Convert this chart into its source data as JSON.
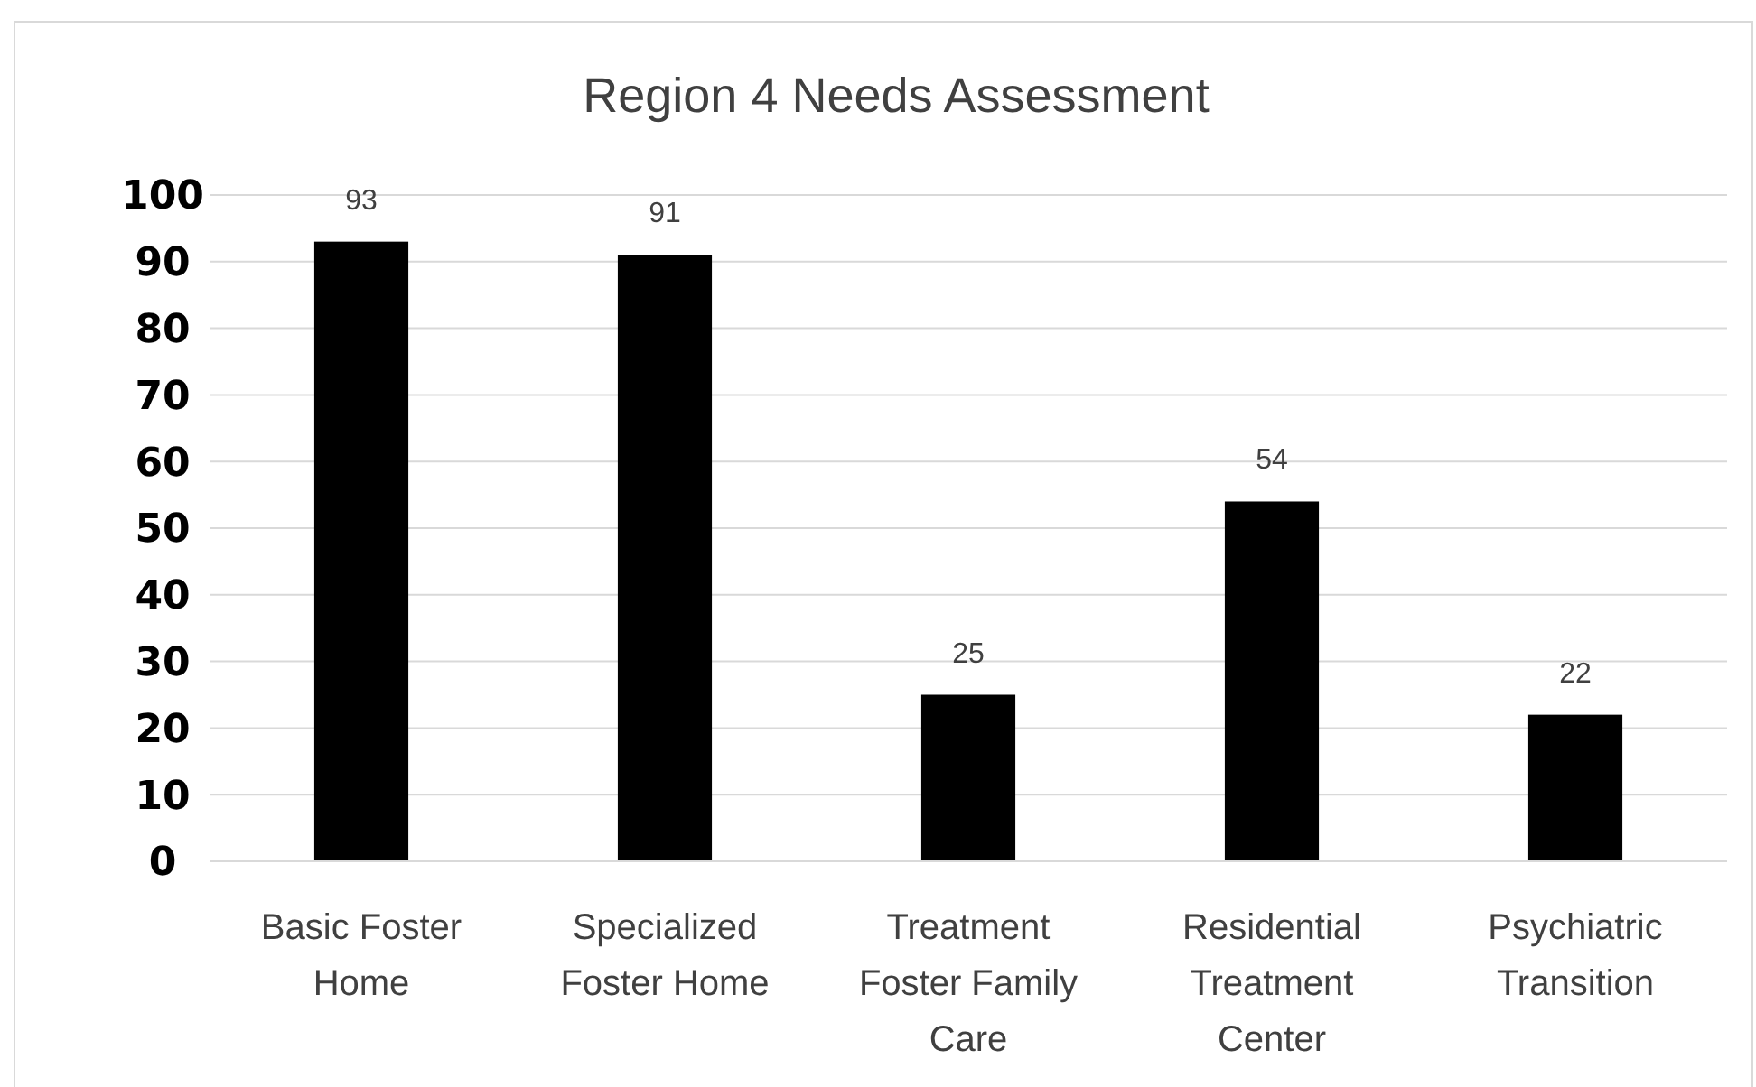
{
  "chart_data": {
    "type": "bar",
    "title": "Region 4 Needs Assessment",
    "categories": [
      "Basic Foster Home",
      "Specialized Foster Home",
      "Treatment Foster Family Care",
      "Residential Treatment Center",
      "Psychiatric Transition"
    ],
    "values": [
      93,
      91,
      25,
      54,
      22
    ],
    "color": "#000000",
    "ylim": [
      0,
      100
    ],
    "yticks": [
      0,
      10,
      20,
      30,
      40,
      50,
      60,
      70,
      80,
      90,
      100
    ],
    "grid": "y",
    "data_labels": true
  }
}
